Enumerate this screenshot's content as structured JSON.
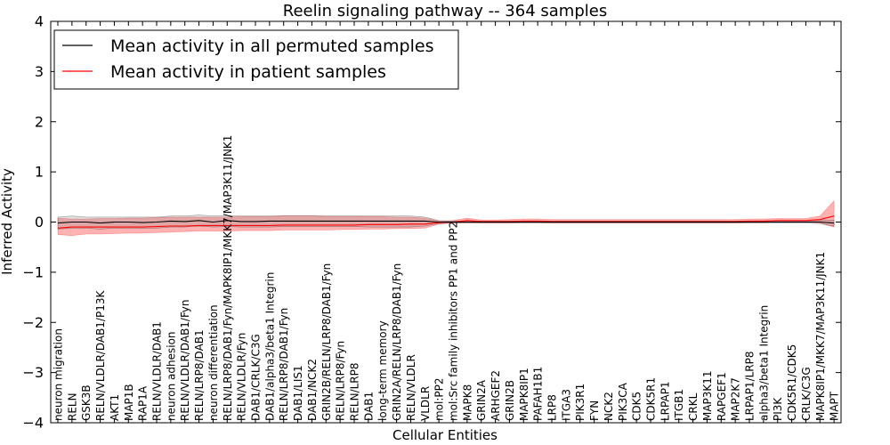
{
  "chart_data": {
    "type": "line",
    "title": "Reelin signaling pathway -- 364 samples",
    "xlabel": "Cellular Entities",
    "ylabel": "Inferred Activity",
    "ylim": [
      -4,
      4
    ],
    "yticks": [
      4,
      3,
      2,
      1,
      0,
      -1,
      -2,
      -3,
      -4
    ],
    "ytick_labels": [
      "4",
      "3",
      "2",
      "1",
      "0",
      "−1",
      "−2",
      "−3",
      "−4"
    ],
    "grid": false,
    "legend_position": "top-left",
    "categories": [
      "neuron migration",
      "RELN",
      "GSK3B",
      "RELN/VLDLR/DAB1/P13K",
      "AKT1",
      "MAP1B",
      "RAP1A",
      "RELN/VLDLR/DAB1",
      "neuron adhesion",
      "RELN/VLDLR/DAB1/Fyn",
      "RELN/LRP8/DAB1",
      "neuron differentiation",
      "RELN/LRP8/DAB1/Fyn/MAPK8IP1/MKK7/MAP3K11/JNK1",
      "RELN/VLDLR/Fyn",
      "DAB1/CRLK/C3G",
      "DAB1/alpha3/beta1 Integrin",
      "RELN/LRP8/DAB1/Fyn",
      "DAB1/LIS1",
      "DAB1/NCK2",
      "GRIN2B/RELN/LRP8/DAB1/Fyn",
      "RELN/LRP8/Fyn",
      "RELN/LRP8",
      "DAB1",
      "long-term memory",
      "GRIN2A/RELN/LRP8/DAB1/Fyn",
      "RELN/VLDLR",
      "VLDLR",
      "mol:PP2",
      "mol:Src family inhibitors PP1 and PP2",
      "MAPK8",
      "GRIN2A",
      "ARHGEF2",
      "GRIN2B",
      "MAPK8IP1",
      "PAFAH1B1",
      "LRP8",
      "ITGA3",
      "PIK3R1",
      "FYN",
      "NCK2",
      "PIK3CA",
      "CDK5",
      "CDK5R1",
      "LRPAP1",
      "ITGB1",
      "CRKL",
      "MAP3K11",
      "RAPGEF1",
      "MAP2K7",
      "LRPAP1/LRP8",
      "alpha3/beta1 Integrin",
      "PI3K",
      "CDK5R1/CDK5",
      "CRLK/C3G",
      "MAPK8IP1/MKK7/MAP3K11/JNK1",
      "MAPT"
    ],
    "series": [
      {
        "name": "Mean activity in all permuted samples",
        "color": "#000000",
        "values": [
          -0.02,
          0.0,
          0.0,
          -0.02,
          0.0,
          0.0,
          -0.01,
          0.0,
          0.02,
          0.01,
          0.03,
          0.0,
          0.03,
          0.01,
          0.01,
          0.02,
          0.02,
          0.02,
          0.02,
          0.02,
          0.02,
          0.02,
          0.02,
          0.02,
          0.02,
          0.02,
          0.02,
          0.0,
          0.0,
          0.0,
          0.0,
          0.0,
          0.0,
          0.0,
          0.0,
          0.0,
          0.0,
          0.0,
          0.0,
          0.0,
          0.0,
          0.0,
          0.0,
          0.0,
          0.0,
          0.0,
          0.0,
          0.0,
          0.0,
          0.0,
          0.0,
          0.0,
          0.0,
          0.0,
          0.0,
          -0.02
        ],
        "upper": [
          0.1,
          0.12,
          0.1,
          0.1,
          0.1,
          0.1,
          0.1,
          0.1,
          0.12,
          0.12,
          0.14,
          0.12,
          0.13,
          0.12,
          0.12,
          0.12,
          0.13,
          0.13,
          0.13,
          0.13,
          0.13,
          0.13,
          0.12,
          0.12,
          0.12,
          0.12,
          0.1,
          0.03,
          0.02,
          0.02,
          0.02,
          0.02,
          0.02,
          0.02,
          0.02,
          0.02,
          0.02,
          0.02,
          0.02,
          0.02,
          0.02,
          0.02,
          0.02,
          0.02,
          0.02,
          0.02,
          0.02,
          0.02,
          0.02,
          0.02,
          0.02,
          0.02,
          0.02,
          0.02,
          0.03,
          0.04
        ],
        "lower": [
          -0.14,
          -0.12,
          -0.12,
          -0.14,
          -0.12,
          -0.12,
          -0.12,
          -0.12,
          -0.1,
          -0.1,
          -0.08,
          -0.1,
          -0.09,
          -0.1,
          -0.1,
          -0.1,
          -0.09,
          -0.09,
          -0.09,
          -0.09,
          -0.09,
          -0.09,
          -0.1,
          -0.1,
          -0.1,
          -0.1,
          -0.08,
          -0.03,
          -0.02,
          -0.02,
          -0.02,
          -0.02,
          -0.02,
          -0.02,
          -0.02,
          -0.02,
          -0.02,
          -0.02,
          -0.02,
          -0.02,
          -0.02,
          -0.02,
          -0.02,
          -0.02,
          -0.02,
          -0.02,
          -0.02,
          -0.02,
          -0.02,
          -0.02,
          -0.02,
          -0.02,
          -0.02,
          -0.02,
          -0.03,
          -0.08
        ]
      },
      {
        "name": "Mean activity in patient samples",
        "color": "#ff0000",
        "values": [
          -0.12,
          -0.1,
          -0.1,
          -0.1,
          -0.1,
          -0.1,
          -0.1,
          -0.09,
          -0.08,
          -0.08,
          -0.07,
          -0.07,
          -0.07,
          -0.07,
          -0.07,
          -0.07,
          -0.06,
          -0.06,
          -0.06,
          -0.06,
          -0.06,
          -0.06,
          -0.05,
          -0.05,
          -0.05,
          -0.04,
          -0.04,
          -0.01,
          0.0,
          0.03,
          0.01,
          0.01,
          0.01,
          0.02,
          0.02,
          0.01,
          0.01,
          0.01,
          0.01,
          0.01,
          0.01,
          0.01,
          0.01,
          0.01,
          0.01,
          0.01,
          0.01,
          0.01,
          0.01,
          0.02,
          0.02,
          0.03,
          0.03,
          0.03,
          0.05,
          0.12
        ],
        "upper": [
          0.08,
          0.06,
          0.06,
          0.07,
          0.07,
          0.08,
          0.08,
          0.09,
          0.1,
          0.1,
          0.1,
          0.1,
          0.1,
          0.11,
          0.11,
          0.11,
          0.12,
          0.12,
          0.12,
          0.11,
          0.11,
          0.11,
          0.11,
          0.11,
          0.1,
          0.1,
          0.08,
          0.02,
          0.03,
          0.08,
          0.04,
          0.04,
          0.05,
          0.06,
          0.06,
          0.05,
          0.05,
          0.05,
          0.05,
          0.05,
          0.05,
          0.05,
          0.05,
          0.05,
          0.05,
          0.05,
          0.05,
          0.05,
          0.05,
          0.06,
          0.06,
          0.07,
          0.07,
          0.07,
          0.12,
          0.42
        ],
        "lower": [
          -0.25,
          -0.27,
          -0.24,
          -0.24,
          -0.23,
          -0.22,
          -0.22,
          -0.21,
          -0.2,
          -0.19,
          -0.18,
          -0.18,
          -0.18,
          -0.17,
          -0.17,
          -0.17,
          -0.16,
          -0.16,
          -0.16,
          -0.16,
          -0.15,
          -0.15,
          -0.14,
          -0.14,
          -0.13,
          -0.13,
          -0.12,
          -0.04,
          -0.02,
          -0.01,
          -0.02,
          -0.02,
          -0.02,
          -0.01,
          -0.01,
          -0.02,
          -0.02,
          -0.02,
          -0.02,
          -0.02,
          -0.02,
          -0.02,
          -0.02,
          -0.02,
          -0.02,
          -0.02,
          -0.02,
          -0.02,
          -0.02,
          -0.01,
          -0.01,
          0.0,
          0.0,
          0.0,
          -0.02,
          -0.1
        ]
      }
    ]
  }
}
